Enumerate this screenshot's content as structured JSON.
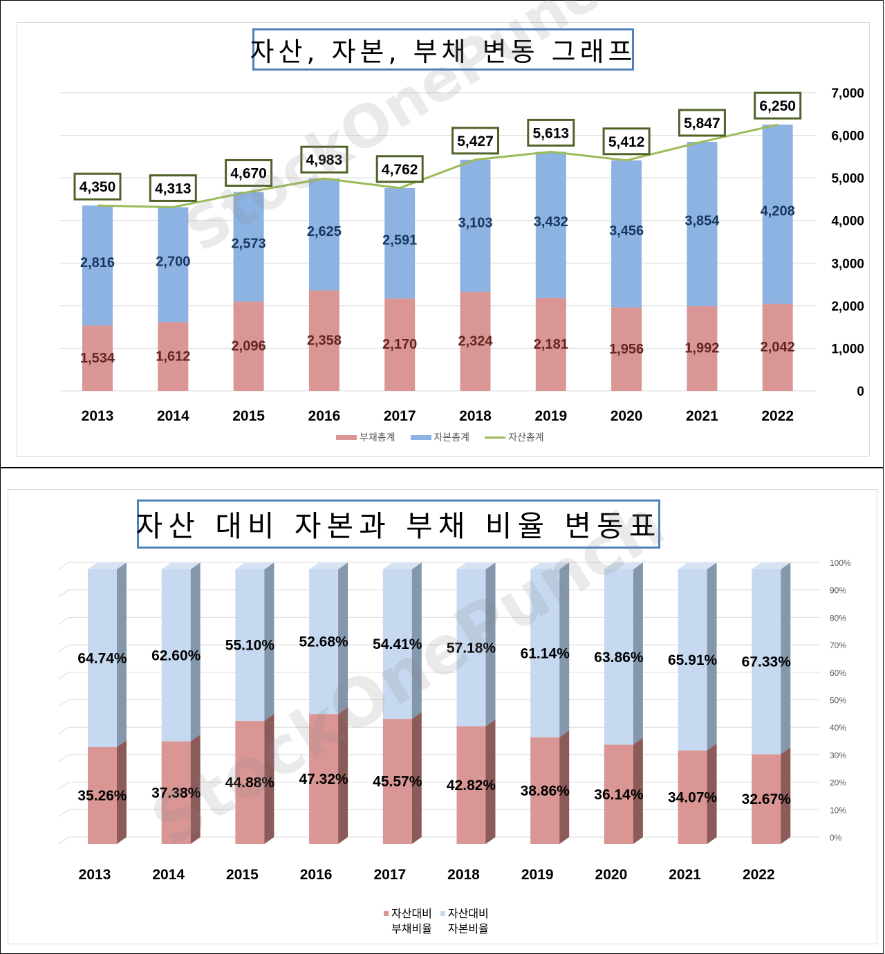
{
  "watermark": "StockOnePunch",
  "chart_data": [
    {
      "type": "bar",
      "stacked": true,
      "title": "자산, 자본, 부채 변동 그래프",
      "categories": [
        "2013",
        "2014",
        "2015",
        "2016",
        "2017",
        "2018",
        "2019",
        "2020",
        "2021",
        "2022"
      ],
      "series": [
        {
          "name": "부채총계",
          "kind": "bar",
          "color": "#d99694",
          "values": [
            1534,
            1612,
            2096,
            2358,
            2170,
            2324,
            2181,
            1956,
            1992,
            2042
          ],
          "labels": [
            "1,534",
            "1,612",
            "2,096",
            "2,358",
            "2,170",
            "2,324",
            "2,181",
            "1,956",
            "1,992",
            "2,042"
          ]
        },
        {
          "name": "자본총계",
          "kind": "bar",
          "color": "#8db3e2",
          "values": [
            2816,
            2700,
            2573,
            2625,
            2591,
            3103,
            3432,
            3456,
            3854,
            4208
          ],
          "labels": [
            "2,816",
            "2,700",
            "2,573",
            "2,625",
            "2,591",
            "3,103",
            "3,432",
            "3,456",
            "3,854",
            "4,208"
          ]
        },
        {
          "name": "자산총계",
          "kind": "line",
          "color": "#9bbb59",
          "values": [
            4350,
            4313,
            4670,
            4983,
            4762,
            5427,
            5613,
            5412,
            5847,
            6250
          ],
          "labels": [
            "4,350",
            "4,313",
            "4,670",
            "4,983",
            "4,762",
            "5,427",
            "5,613",
            "5,412",
            "5,847",
            "6,250"
          ]
        }
      ],
      "y_axis": {
        "position": "right",
        "min": 0,
        "max": 7000,
        "ticks": [
          "0",
          "1,000",
          "2,000",
          "3,000",
          "4,000",
          "5,000",
          "6,000",
          "7,000"
        ]
      },
      "grid": true,
      "legend": "bottom"
    },
    {
      "type": "bar",
      "stacked": true,
      "percent": true,
      "style": "3d",
      "title": "자산 대비 자본과 부채 비율 변동표",
      "categories": [
        "2013",
        "2014",
        "2015",
        "2016",
        "2017",
        "2018",
        "2019",
        "2020",
        "2021",
        "2022"
      ],
      "series": [
        {
          "name": "자산대비\n부채비율",
          "color": "#d99694",
          "values": [
            35.26,
            37.38,
            44.88,
            47.32,
            45.57,
            42.82,
            38.86,
            36.14,
            34.07,
            32.67
          ],
          "labels": [
            "35.26%",
            "37.38%",
            "44.88%",
            "47.32%",
            "45.57%",
            "42.82%",
            "38.86%",
            "36.14%",
            "34.07%",
            "32.67%"
          ]
        },
        {
          "name": "자산대비\n자본비율",
          "color": "#c6d9f1",
          "values": [
            64.74,
            62.6,
            55.1,
            52.68,
            54.41,
            57.18,
            61.14,
            63.86,
            65.91,
            67.33
          ],
          "labels": [
            "64.74%",
            "62.60%",
            "55.10%",
            "52.68%",
            "54.41%",
            "57.18%",
            "61.14%",
            "63.86%",
            "65.91%",
            "67.33%"
          ]
        }
      ],
      "y_axis": {
        "position": "right",
        "min": 0,
        "max": 100,
        "ticks": [
          "0%",
          "10%",
          "20%",
          "30%",
          "40%",
          "50%",
          "60%",
          "70%",
          "80%",
          "90%",
          "100%"
        ]
      },
      "grid": true,
      "legend": "bottom"
    }
  ]
}
